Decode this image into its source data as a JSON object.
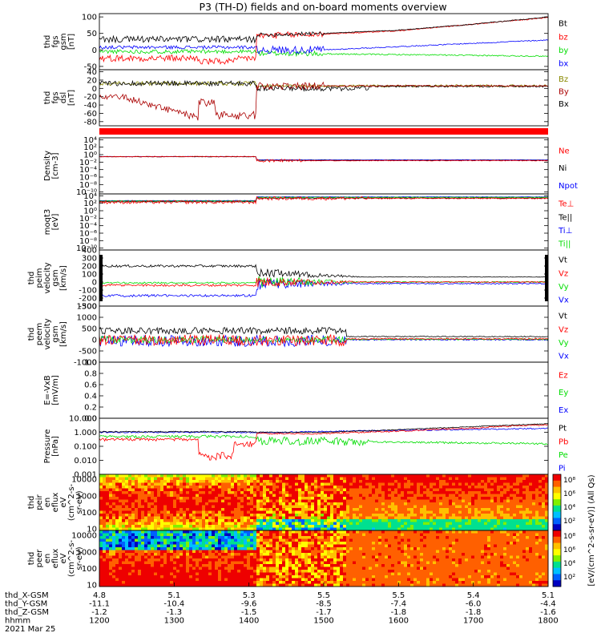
{
  "title": "P3 (TH-D) fields and on-board moments overview",
  "colors": {
    "black": "#000000",
    "red": "#ff0000",
    "green": "#00dd00",
    "blue": "#0000ff",
    "darkred": "#aa0000",
    "olive": "#888800"
  },
  "panels": [
    {
      "id": "fgs-gsm",
      "ylabel": [
        "thd",
        "fgs",
        "gsm",
        "[nT]"
      ],
      "yticks": [
        "100",
        "50",
        "0",
        "-50"
      ],
      "series": [
        {
          "name": "Bt",
          "color": "black"
        },
        {
          "name": "bz",
          "color": "red"
        },
        {
          "name": "by",
          "color": "green"
        },
        {
          "name": "bx",
          "color": "blue"
        }
      ]
    },
    {
      "id": "fgs-dsl",
      "ylabel": [
        "thd",
        "fgs",
        "dsl",
        "[nT]"
      ],
      "yticks": [
        "40",
        "20",
        "0",
        "-20",
        "-40",
        "-60",
        "-80"
      ],
      "series": [
        {
          "name": "Bz",
          "color": "olive"
        },
        {
          "name": "By",
          "color": "darkred"
        },
        {
          "name": "Bx",
          "color": "black"
        }
      ]
    },
    {
      "id": "density",
      "ylabel": [
        "Density",
        "[cm-3]"
      ],
      "yticks": [
        "10⁴",
        "10²",
        "10⁰",
        "10⁻²",
        "10⁻⁴",
        "10⁻⁶",
        "10⁻⁸",
        "10⁻¹⁰"
      ],
      "series": [
        {
          "name": "Ne",
          "color": "red"
        },
        {
          "name": "Ni",
          "color": "black"
        },
        {
          "name": "Npot",
          "color": "blue"
        }
      ]
    },
    {
      "id": "temperature",
      "ylabel": [
        "moqt3",
        "[eV]"
      ],
      "yticks": [
        "10⁴",
        "10²",
        "10⁰",
        "10⁻²",
        "10⁻⁴",
        "10⁻⁶",
        "10⁻⁸",
        "10⁻¹⁰"
      ],
      "series": [
        {
          "name": "Te⊥",
          "color": "red"
        },
        {
          "name": "Te||",
          "color": "black"
        },
        {
          "name": "Ti⊥",
          "color": "blue"
        },
        {
          "name": "Ti||",
          "color": "green"
        }
      ]
    },
    {
      "id": "peim-velocity",
      "ylabel": [
        "thd",
        "peim",
        "velocity",
        "gsm",
        "[km/s]"
      ],
      "yticks": [
        "400",
        "300",
        "200",
        "100",
        "0",
        "-100",
        "-200",
        "-300"
      ],
      "series": [
        {
          "name": "Vt",
          "color": "black"
        },
        {
          "name": "Vz",
          "color": "red"
        },
        {
          "name": "Vy",
          "color": "green"
        },
        {
          "name": "Vx",
          "color": "blue"
        }
      ]
    },
    {
      "id": "peem-velocity",
      "ylabel": [
        "thd",
        "peem",
        "velocity",
        "gsm",
        "[km/s]"
      ],
      "yticks": [
        "1500",
        "1000",
        "500",
        "0",
        "-500",
        "-1000"
      ],
      "series": [
        {
          "name": "Vt",
          "color": "black"
        },
        {
          "name": "Vz",
          "color": "red"
        },
        {
          "name": "Vy",
          "color": "green"
        },
        {
          "name": "Vx",
          "color": "blue"
        }
      ]
    },
    {
      "id": "efield",
      "ylabel": [
        "E=-VxB",
        "[mV/m]"
      ],
      "yticks": [
        "1.0",
        "0.8",
        "0.6",
        "0.4",
        "0.2",
        "0.0"
      ],
      "series": [
        {
          "name": "Ez",
          "color": "red"
        },
        {
          "name": "Ey",
          "color": "green"
        },
        {
          "name": "Ex",
          "color": "blue"
        }
      ]
    },
    {
      "id": "pressure",
      "ylabel": [
        "Pressure",
        "[nPa]"
      ],
      "yticks": [
        "10.000",
        "1.000",
        "0.100",
        "0.010",
        "0.001"
      ],
      "series": [
        {
          "name": "Pt",
          "color": "black"
        },
        {
          "name": "Pb",
          "color": "red"
        },
        {
          "name": "Pe",
          "color": "green"
        },
        {
          "name": "Pi",
          "color": "blue"
        }
      ]
    },
    {
      "id": "peir-spec",
      "ylabel": [
        "thd",
        "peir",
        "en",
        "eflux",
        "eV",
        "(cm^2-s-",
        "sr-eV)"
      ],
      "yticks": [
        "10000",
        "1000",
        "100",
        "10"
      ]
    },
    {
      "id": "peer-spec",
      "ylabel": [
        "thd",
        "peer",
        "en",
        "eflux",
        "eV",
        "(cm^2-s-",
        "sr-eV)"
      ],
      "yticks": [
        "10000",
        "1000",
        "100",
        "10"
      ]
    }
  ],
  "colorbar": {
    "ticks": [
      "10⁸",
      "10⁶",
      "10⁴",
      "10²"
    ],
    "label": "[eV/(cm^2-s-sr-eV)] (All Qs)"
  },
  "xaxis": {
    "rows": [
      {
        "label": "thd_X-GSM",
        "values": [
          "4.8",
          "5.1",
          "5.3",
          "5.5",
          "5.5",
          "5.4",
          "5.1"
        ]
      },
      {
        "label": "thd_Y-GSM",
        "values": [
          "-11.1",
          "-10.4",
          "-9.6",
          "-8.5",
          "-7.4",
          "-6.0",
          "-4.4"
        ]
      },
      {
        "label": "thd_Z-GSM",
        "values": [
          "-1.2",
          "-1.3",
          "-1.5",
          "-1.7",
          "-1.8",
          "-1.8",
          "-1.6"
        ]
      },
      {
        "label": "hhmm",
        "values": [
          "1200",
          "1300",
          "1400",
          "1500",
          "1600",
          "1700",
          "1800"
        ]
      }
    ],
    "date": "2021 Mar 25"
  },
  "chart_data": {
    "type": "line",
    "title": "P3 (TH-D) fields and on-board moments overview",
    "x": [
      "1200",
      "1300",
      "1400",
      "1500",
      "1600",
      "1700",
      "1800"
    ],
    "xlabel": "hhmm",
    "date": "2021 Mar 25",
    "series": [
      {
        "name": "Bt",
        "panel": "fgs-gsm",
        "values": [
          35,
          30,
          45,
          50,
          60,
          80,
          100
        ]
      },
      {
        "name": "bz",
        "panel": "fgs-gsm",
        "values": [
          -20,
          -40,
          40,
          50,
          60,
          80,
          100
        ]
      },
      {
        "name": "by",
        "panel": "fgs-gsm",
        "values": [
          0,
          -10,
          0,
          -5,
          -10,
          -15,
          -15
        ]
      },
      {
        "name": "bx",
        "panel": "fgs-gsm",
        "values": [
          10,
          5,
          0,
          0,
          10,
          20,
          30
        ]
      },
      {
        "name": "By",
        "panel": "fgs-dsl",
        "values": [
          -20,
          -70,
          10,
          5,
          0,
          0,
          0
        ]
      },
      {
        "name": "Bx",
        "panel": "fgs-dsl",
        "values": [
          10,
          15,
          0,
          -5,
          -5,
          0,
          0
        ]
      },
      {
        "name": "Ne",
        "panel": "density",
        "values": [
          0.3,
          0.3,
          0.05,
          0.03,
          0.02,
          0.02,
          0.03
        ]
      },
      {
        "name": "Te⊥",
        "panel": "temperature",
        "values": [
          300,
          300,
          2000,
          3000,
          3000,
          3000,
          3000
        ]
      },
      {
        "name": "Vt",
        "panel": "peim-velocity",
        "values": [
          200,
          200,
          100,
          30,
          20,
          10,
          10
        ]
      },
      {
        "name": "Vx",
        "panel": "peim-velocity",
        "values": [
          -170,
          -170,
          -50,
          0,
          0,
          0,
          0
        ]
      },
      {
        "name": "Pt",
        "panel": "pressure",
        "values": [
          1.0,
          1.0,
          0.8,
          0.9,
          1.5,
          2.5,
          4.0
        ]
      }
    ],
    "ylim_fgs_gsm": [
      -60,
      110
    ],
    "ylim_fgs_dsl": [
      -90,
      45
    ],
    "ylim_peim_velocity": [
      -300,
      400
    ],
    "ylim_peem_velocity": [
      -1000,
      1500
    ],
    "ylim_efield": [
      0,
      1
    ],
    "grid": false
  }
}
